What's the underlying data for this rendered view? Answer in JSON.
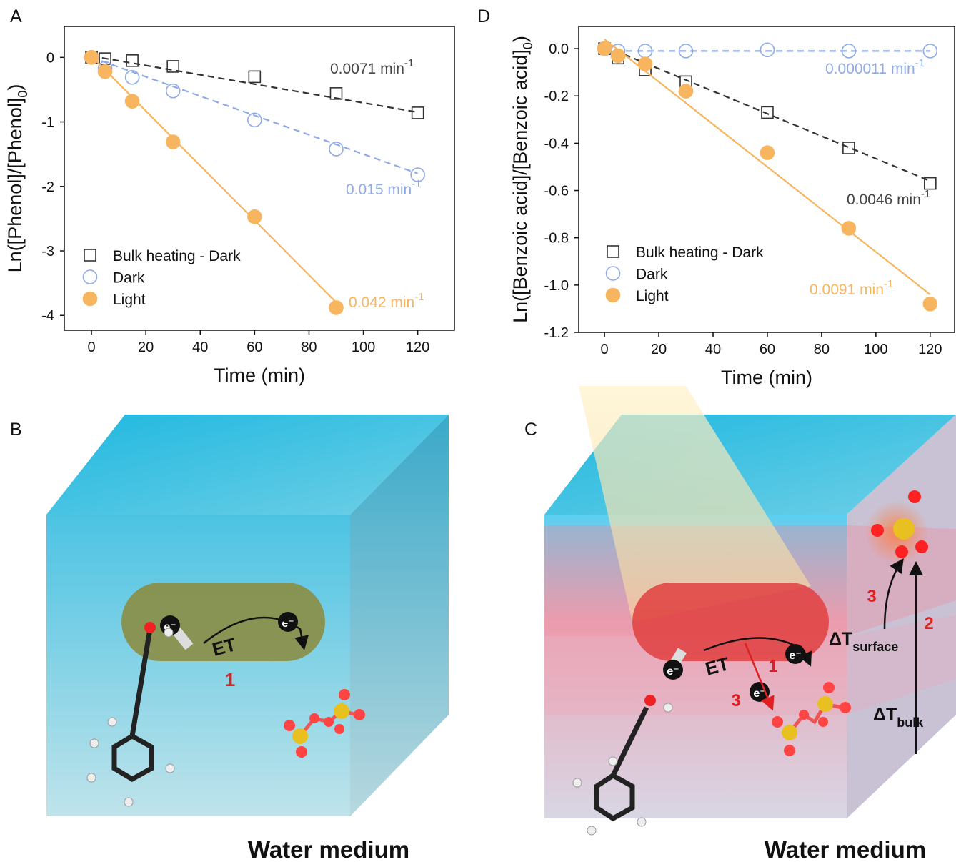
{
  "panels": {
    "a": "A",
    "b": "B",
    "c": "C",
    "d": "D"
  },
  "chart_data": [
    {
      "type": "scatter",
      "xlabel": "Time (min)",
      "ylabel": "Ln([Phenol]/[Phenol]",
      "ylabel_sub": "0",
      "ylabel_end": ")",
      "xlim": [
        -10,
        133.5
      ],
      "ylim": [
        -4.23,
        0.48
      ],
      "xticks": [
        0,
        20,
        40,
        60,
        80,
        100,
        120
      ],
      "yticks": [
        0,
        -1,
        -2,
        -3,
        -4
      ],
      "legend": "lower left",
      "series": [
        {
          "name": "Bulk heating - Dark",
          "color": "#333333",
          "marker": "square",
          "filled": false,
          "dash": true,
          "x": [
            0,
            5,
            15,
            30,
            60,
            90,
            120
          ],
          "values": [
            0,
            -0.02,
            -0.05,
            -0.14,
            -0.3,
            -0.56,
            -0.86
          ],
          "fit": {
            "x": [
              0,
              120
            ],
            "y": [
              0.02,
              -0.85
            ]
          }
        },
        {
          "name": "Dark",
          "color": "#8faae8",
          "marker": "circle",
          "filled": false,
          "dash": true,
          "x": [
            0,
            5,
            15,
            30,
            60,
            90,
            120
          ],
          "values": [
            0,
            -0.17,
            -0.31,
            -0.52,
            -0.97,
            -1.42,
            -1.82
          ],
          "fit": {
            "x": [
              0,
              120
            ],
            "y": [
              0,
              -1.8
            ]
          }
        },
        {
          "name": "Light",
          "color": "#f8b560",
          "marker": "circle",
          "filled": true,
          "dash": false,
          "x": [
            0,
            5,
            15,
            30,
            60,
            90
          ],
          "values": [
            0,
            -0.22,
            -0.68,
            -1.31,
            -2.47,
            -3.88
          ],
          "fit": {
            "x": [
              0,
              90
            ],
            "y": [
              0.02,
              -3.8
            ]
          }
        }
      ],
      "annotations": [
        {
          "text": "0.0071 min",
          "sup": "-1",
          "color": "#444444"
        },
        {
          "text": "0.015 min",
          "sup": "-1",
          "color": "#8faae8"
        },
        {
          "text": "0.042 min",
          "sup": "-1",
          "color": "#f8b560"
        }
      ]
    },
    {
      "type": "scatter",
      "xlabel": "Time (min)",
      "ylabel": "Ln([Benzoic acid]/[Benzoic acid]",
      "ylabel_sub": "0",
      "ylabel_end": ")",
      "xlim": [
        -9.5,
        129
      ],
      "ylim": [
        -1.2,
        0.094
      ],
      "xticks": [
        0,
        20,
        40,
        60,
        80,
        100,
        120
      ],
      "yticks": [
        {
          "value": 0,
          "label": "0.0"
        },
        -0.2,
        -0.4,
        -0.6,
        -0.8,
        {
          "value": -1,
          "label": "-1.0"
        },
        -1.2
      ],
      "legend": "lower left",
      "series": [
        {
          "name": "Bulk heating - Dark",
          "color": "#333333",
          "marker": "square",
          "filled": false,
          "dash": true,
          "x": [
            0,
            5,
            15,
            30,
            60,
            90,
            120
          ],
          "values": [
            0,
            -0.04,
            -0.09,
            -0.14,
            -0.27,
            -0.42,
            -0.57
          ],
          "fit": {
            "x": [
              0,
              120
            ],
            "y": [
              0.01,
              -0.56
            ]
          }
        },
        {
          "name": "Dark",
          "color": "#8faae8",
          "marker": "circle",
          "filled": false,
          "dash": true,
          "x": [
            0,
            5,
            15,
            30,
            60,
            90,
            120
          ],
          "values": [
            0,
            -0.01,
            -0.01,
            -0.01,
            -0.005,
            -0.01,
            -0.01
          ],
          "fit": {
            "x": [
              0,
              120
            ],
            "y": [
              -0.01,
              -0.01
            ]
          }
        },
        {
          "name": "Light",
          "color": "#f8b560",
          "marker": "circle",
          "filled": true,
          "dash": false,
          "x": [
            0,
            5,
            15,
            30,
            60,
            90,
            120
          ],
          "values": [
            0,
            -0.03,
            -0.065,
            -0.18,
            -0.44,
            -0.76,
            -1.08
          ],
          "fit": {
            "x": [
              0,
              120
            ],
            "y": [
              0.04,
              -1.04
            ]
          }
        }
      ],
      "annotations": [
        {
          "text": "0.0046 min",
          "sup": "-1",
          "color": "#444444"
        },
        {
          "text": "0.000011 min",
          "sup": "-1",
          "color": "#8faae8"
        },
        {
          "text": "0.0091 min",
          "sup": "-1",
          "color": "#f8b560"
        }
      ]
    }
  ],
  "diagrams": {
    "b": {
      "electron": "e⁻",
      "et": "ET",
      "step": "1",
      "caption": "Water medium"
    },
    "c": {
      "electron": "e⁻",
      "et": "ET",
      "step1": "1",
      "step2": "2",
      "step3": "3",
      "dt": "ΔT",
      "surface": "surface",
      "bulk": "bulk",
      "caption": "Water medium"
    }
  }
}
